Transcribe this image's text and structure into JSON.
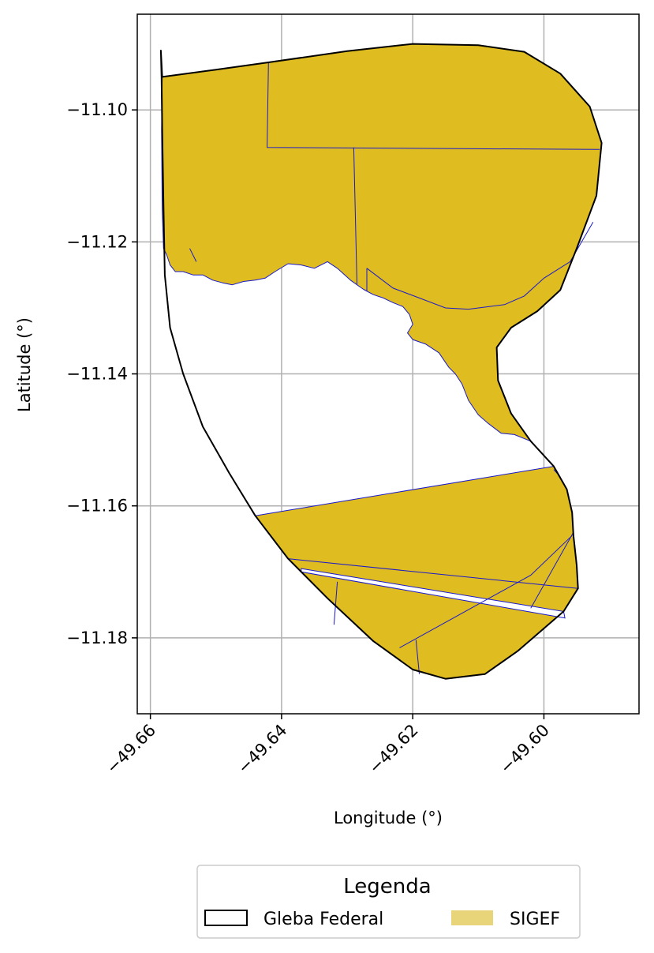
{
  "chart_data": {
    "type": "map",
    "xlabel": "Longitude (°)",
    "ylabel": "Latitude (°)",
    "xlim": [
      -49.662,
      -49.5855
    ],
    "ylim": [
      -11.1915,
      -11.0855
    ],
    "xticks": [
      {
        "value": -49.66,
        "label": "−49.66"
      },
      {
        "value": -49.64,
        "label": "−49.64"
      },
      {
        "value": -49.62,
        "label": "−49.62"
      },
      {
        "value": -49.6,
        "label": "−49.60"
      }
    ],
    "yticks": [
      {
        "value": -11.1,
        "label": "−11.10"
      },
      {
        "value": -11.12,
        "label": "−11.12"
      },
      {
        "value": -11.14,
        "label": "−11.14"
      },
      {
        "value": -11.16,
        "label": "−11.16"
      },
      {
        "value": -11.18,
        "label": "−11.18"
      }
    ],
    "grid": true,
    "legend": {
      "title": "Legenda",
      "placement": "bottom-center",
      "entries": [
        {
          "label": "Gleba Federal",
          "style": "outline",
          "color": "#000000"
        },
        {
          "label": "SIGEF",
          "style": "fill",
          "color": "#e8d57a"
        }
      ]
    },
    "colors": {
      "sigef_fill": "#dfbc20",
      "sigef_edge": "#1a1acc",
      "gleba_edge": "#000000",
      "grid": "#b0b0b0"
    },
    "layers": {
      "gleba_federal": [
        [
          [
            -49.6584,
            -11.091
          ],
          [
            -49.6582,
            -11.095
          ],
          [
            -49.65,
            -11.0939
          ],
          [
            -49.642,
            -11.0928
          ],
          [
            -49.63,
            -11.0911
          ],
          [
            -49.62,
            -11.09
          ],
          [
            -49.61,
            -11.0902
          ],
          [
            -49.603,
            -11.0912
          ],
          [
            -49.5975,
            -11.0945
          ],
          [
            -49.593,
            -11.0995
          ],
          [
            -49.5912,
            -11.105
          ],
          [
            -49.592,
            -11.113
          ],
          [
            -49.595,
            -11.121
          ],
          [
            -49.5975,
            -11.1273
          ],
          [
            -49.601,
            -11.1305
          ],
          [
            -49.605,
            -11.133
          ],
          [
            -49.6072,
            -11.136
          ],
          [
            -49.607,
            -11.141
          ],
          [
            -49.605,
            -11.146
          ],
          [
            -49.602,
            -11.1502
          ],
          [
            -49.5985,
            -11.154
          ],
          [
            -49.5965,
            -11.1575
          ],
          [
            -49.5957,
            -11.161
          ],
          [
            -49.5955,
            -11.1645
          ],
          [
            -49.595,
            -11.169
          ],
          [
            -49.5948,
            -11.1725
          ],
          [
            -49.597,
            -11.176
          ],
          [
            -49.604,
            -11.182
          ],
          [
            -49.609,
            -11.1855
          ],
          [
            -49.615,
            -11.1862
          ],
          [
            -49.62,
            -11.1848
          ],
          [
            -49.626,
            -11.1805
          ],
          [
            -49.633,
            -11.174
          ],
          [
            -49.639,
            -11.168
          ],
          [
            -49.644,
            -11.1615
          ],
          [
            -49.648,
            -11.155
          ],
          [
            -49.652,
            -11.148
          ],
          [
            -49.655,
            -11.14
          ],
          [
            -49.657,
            -11.133
          ],
          [
            -49.6578,
            -11.125
          ],
          [
            -49.658,
            -11.115
          ],
          [
            -49.6582,
            -11.103
          ],
          [
            -49.6583,
            -11.095
          ],
          [
            -49.6584,
            -11.091
          ]
        ]
      ],
      "sigef_parcels": [
        [
          [
            -49.6582,
            -11.095
          ],
          [
            -49.642,
            -11.0928
          ],
          [
            -49.63,
            -11.0911
          ],
          [
            -49.62,
            -11.09
          ],
          [
            -49.61,
            -11.0902
          ],
          [
            -49.603,
            -11.0912
          ],
          [
            -49.5975,
            -11.0945
          ],
          [
            -49.593,
            -11.0995
          ],
          [
            -49.5912,
            -11.105
          ],
          [
            -49.592,
            -11.113
          ],
          [
            -49.595,
            -11.121
          ],
          [
            -49.5975,
            -11.1273
          ],
          [
            -49.601,
            -11.1305
          ],
          [
            -49.605,
            -11.133
          ],
          [
            -49.6072,
            -11.136
          ],
          [
            -49.607,
            -11.141
          ],
          [
            -49.605,
            -11.146
          ],
          [
            -49.602,
            -11.1502
          ],
          [
            -49.6045,
            -11.1492
          ],
          [
            -49.6065,
            -11.149
          ],
          [
            -49.6085,
            -11.1475
          ],
          [
            -49.61,
            -11.1462
          ],
          [
            -49.6115,
            -11.144
          ],
          [
            -49.6125,
            -11.1415
          ],
          [
            -49.6135,
            -11.14
          ],
          [
            -49.6145,
            -11.139
          ],
          [
            -49.616,
            -11.1368
          ],
          [
            -49.618,
            -11.1355
          ],
          [
            -49.62,
            -11.1348
          ],
          [
            -49.6208,
            -11.1338
          ],
          [
            -49.62,
            -11.1325
          ],
          [
            -49.6205,
            -11.131
          ],
          [
            -49.6215,
            -11.1298
          ],
          [
            -49.623,
            -11.1292
          ],
          [
            -49.6245,
            -11.1285
          ],
          [
            -49.626,
            -11.128
          ],
          [
            -49.6275,
            -11.1272
          ],
          [
            -49.6295,
            -11.1258
          ],
          [
            -49.6315,
            -11.124
          ],
          [
            -49.633,
            -11.123
          ],
          [
            -49.635,
            -11.124
          ],
          [
            -49.637,
            -11.1235
          ],
          [
            -49.639,
            -11.1233
          ],
          [
            -49.641,
            -11.1245
          ],
          [
            -49.6425,
            -11.1255
          ],
          [
            -49.644,
            -11.1258
          ],
          [
            -49.6458,
            -11.126
          ],
          [
            -49.6475,
            -11.1265
          ],
          [
            -49.649,
            -11.1262
          ],
          [
            -49.6505,
            -11.1258
          ],
          [
            -49.652,
            -11.125
          ],
          [
            -49.6535,
            -11.125
          ],
          [
            -49.655,
            -11.1245
          ],
          [
            -49.6562,
            -11.1245
          ],
          [
            -49.657,
            -11.1235
          ],
          [
            -49.6575,
            -11.122
          ],
          [
            -49.658,
            -11.121
          ],
          [
            -49.6582,
            -11.115
          ],
          [
            -49.6583,
            -11.103
          ],
          [
            -49.6582,
            -11.095
          ]
        ],
        [
          [
            -49.644,
            -11.1615
          ],
          [
            -49.5985,
            -11.154
          ],
          [
            -49.5965,
            -11.1575
          ],
          [
            -49.5957,
            -11.161
          ],
          [
            -49.5955,
            -11.1645
          ],
          [
            -49.595,
            -11.169
          ],
          [
            -49.5948,
            -11.1725
          ],
          [
            -49.597,
            -11.176
          ],
          [
            -49.604,
            -11.182
          ],
          [
            -49.609,
            -11.1855
          ],
          [
            -49.615,
            -11.1862
          ],
          [
            -49.62,
            -11.1848
          ],
          [
            -49.626,
            -11.1805
          ],
          [
            -49.633,
            -11.174
          ],
          [
            -49.639,
            -11.168
          ],
          [
            -49.644,
            -11.1615
          ]
        ]
      ],
      "sigef_voids": [
        [
          [
            -49.637,
            -11.1695
          ],
          [
            -49.597,
            -11.176
          ],
          [
            -49.5968,
            -11.177
          ],
          [
            -49.637,
            -11.17
          ],
          [
            -49.637,
            -11.1695
          ]
        ]
      ],
      "sigef_divisions": [
        [
          [
            -49.642,
            -11.0928
          ],
          [
            -49.6422,
            -11.1057
          ],
          [
            -49.5915,
            -11.106
          ]
        ],
        [
          [
            -49.629,
            -11.1057
          ],
          [
            -49.6285,
            -11.1265
          ]
        ],
        [
          [
            -49.627,
            -11.124
          ],
          [
            -49.627,
            -11.1275
          ]
        ],
        [
          [
            -49.627,
            -11.124
          ],
          [
            -49.623,
            -11.127
          ],
          [
            -49.619,
            -11.1285
          ],
          [
            -49.615,
            -11.13
          ],
          [
            -49.6115,
            -11.1302
          ],
          [
            -49.606,
            -11.1295
          ],
          [
            -49.603,
            -11.1282
          ],
          [
            -49.6,
            -11.1255
          ],
          [
            -49.596,
            -11.123
          ],
          [
            -49.5925,
            -11.117
          ]
        ],
        [
          [
            -49.654,
            -11.121
          ],
          [
            -49.653,
            -11.123
          ]
        ],
        [
          [
            -49.639,
            -11.168
          ],
          [
            -49.5948,
            -11.1725
          ]
        ],
        [
          [
            -49.6315,
            -11.1715
          ],
          [
            -49.632,
            -11.178
          ]
        ],
        [
          [
            -49.622,
            -11.1815
          ],
          [
            -49.602,
            -11.1705
          ],
          [
            -49.5957,
            -11.1645
          ]
        ],
        [
          [
            -49.6195,
            -11.1803
          ],
          [
            -49.619,
            -11.1855
          ]
        ],
        [
          [
            -49.602,
            -11.1755
          ],
          [
            -49.5955,
            -11.164
          ]
        ],
        [
          [
            -49.5985,
            -11.1545
          ],
          [
            -49.5975,
            -11.1556
          ]
        ]
      ]
    }
  }
}
